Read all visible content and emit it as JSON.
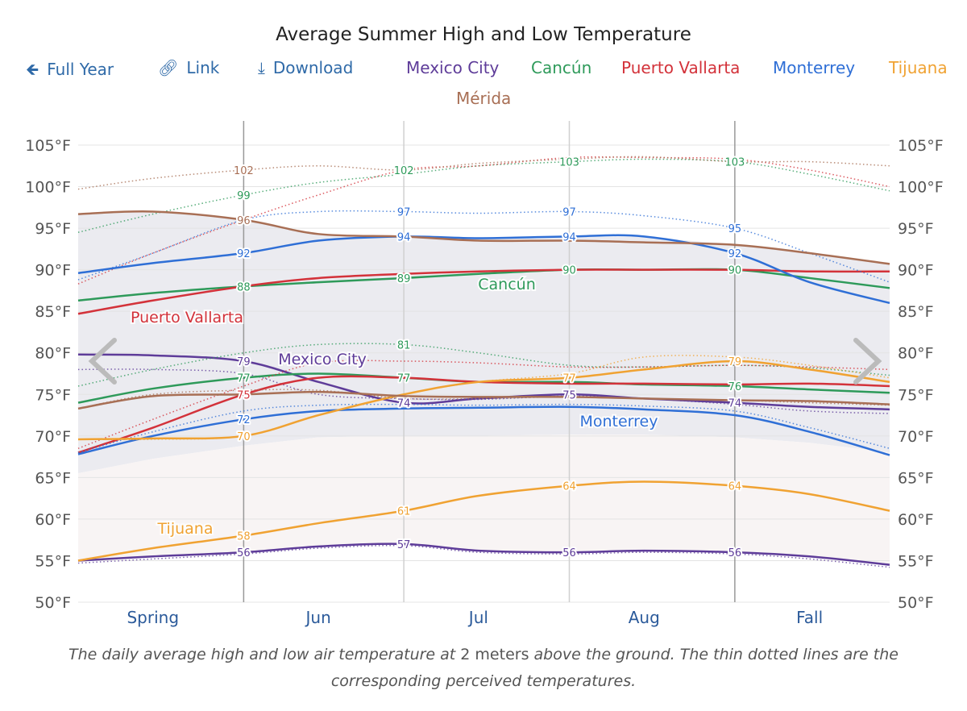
{
  "title": "Average Summer High and Low Temperature",
  "toolbar": {
    "full_year": {
      "label": "Full Year",
      "icon": "arrow-left-icon"
    },
    "link": {
      "label": "Link",
      "icon": "link-icon"
    },
    "download": {
      "label": "Download",
      "icon": "download-icon"
    },
    "color": "#2f6aa8"
  },
  "caption": {
    "part1": "The daily average high and low air temperature at ",
    "part2": "2 meters",
    "part3": " above the ground. The thin dotted lines are the corresponding perceived temperatures."
  },
  "nav": {
    "prev_icon": "chevron-left-icon",
    "next_icon": "chevron-right-icon"
  },
  "chart_data": {
    "type": "line",
    "title": "Average Summer High and Low Temperature",
    "x": [
      "May 1",
      "May 15",
      "Jun 1",
      "Jun 15",
      "Jul 1",
      "Jul 15",
      "Aug 1",
      "Aug 15",
      "Sep 1",
      "Sep 15",
      "Sep 30"
    ],
    "x_tick_labels": [
      "Spring",
      "Jun",
      "Jul",
      "Aug",
      "Fall"
    ],
    "y_unit": "°F",
    "ylim": [
      50,
      105
    ],
    "y_ticks": [
      50,
      55,
      60,
      65,
      70,
      75,
      80,
      85,
      90,
      95,
      100,
      105
    ],
    "grid": true,
    "legend_placement": "top",
    "series": [
      {
        "name": "Mexico City",
        "color": "#5e3c99",
        "high": [
          79.8,
          79.7,
          79,
          76.5,
          74,
          74.5,
          75,
          74.5,
          74,
          73.5,
          73.2
        ],
        "low": [
          55,
          55.5,
          56,
          56.7,
          57,
          56.2,
          56,
          56.2,
          56,
          55.5,
          54.5
        ],
        "high_perceived": [
          78,
          78,
          77.5,
          75,
          74.5,
          74.4,
          74.8,
          74.5,
          73.8,
          73,
          72.7
        ],
        "low_perceived": [
          54.7,
          55.2,
          55.8,
          56.5,
          56.8,
          56,
          55.8,
          56,
          55.8,
          55.2,
          54.2
        ]
      },
      {
        "name": "Cancún",
        "color": "#2e9a5a",
        "high": [
          86.3,
          87.2,
          88,
          88.5,
          89,
          89.5,
          90,
          90,
          90,
          89,
          87.8
        ],
        "low": [
          74,
          75.7,
          77,
          77.5,
          77,
          76.5,
          76.5,
          76.2,
          76,
          75.6,
          75.2
        ],
        "high_perceived": [
          94.5,
          96.7,
          99,
          100.5,
          101.5,
          102.5,
          103,
          103.3,
          103,
          101.5,
          99.5
        ],
        "low_perceived": [
          76,
          78,
          80,
          81,
          81,
          80,
          78.5,
          78.3,
          78.5,
          78.2,
          77.3
        ]
      },
      {
        "name": "Puerto Vallarta",
        "color": "#d3323a",
        "high": [
          84.7,
          86.3,
          88,
          89,
          89.5,
          89.8,
          90,
          90,
          90,
          89.8,
          89.8
        ],
        "low": [
          68,
          71,
          75,
          77,
          77,
          76.5,
          76.3,
          76.3,
          76.2,
          76.3,
          76
        ],
        "high_perceived": [
          88.3,
          92,
          96,
          99,
          102,
          102.5,
          103.5,
          103.5,
          103.3,
          102,
          100
        ],
        "low_perceived": [
          68.5,
          72,
          76,
          78.8,
          79,
          78.8,
          78.3,
          78.3,
          78.5,
          78.3,
          78
        ]
      },
      {
        "name": "Monterrey",
        "color": "#2f6fd6",
        "high": [
          89.6,
          90.8,
          92,
          93.5,
          94,
          93.8,
          94,
          94,
          92,
          88.5,
          86
        ],
        "low": [
          67.8,
          70,
          72,
          73,
          73.3,
          73.4,
          73.5,
          73.2,
          72.5,
          70.5,
          67.7
        ],
        "high_perceived": [
          88.8,
          92,
          96,
          97,
          97,
          96.8,
          97,
          96.5,
          95,
          92,
          88.5
        ],
        "low_perceived": [
          68,
          70.5,
          73,
          73.7,
          73.8,
          73.7,
          73.8,
          73.6,
          73,
          71,
          68.5
        ]
      },
      {
        "name": "Tijuana",
        "color": "#f0a232",
        "high": [
          69.6,
          69.7,
          70,
          72.5,
          75,
          76.5,
          77,
          78,
          79,
          78,
          76.5
        ],
        "low": [
          55,
          56.5,
          58,
          59.5,
          61,
          62.8,
          64,
          64.5,
          64,
          63,
          61
        ],
        "high_perceived": [
          69.6,
          69.6,
          70,
          72.5,
          75,
          76.5,
          77.5,
          79.5,
          79.5,
          78.5,
          77
        ],
        "low_perceived": [
          55,
          56.5,
          58,
          59.5,
          61,
          62.8,
          64,
          64.5,
          64,
          63,
          61
        ]
      },
      {
        "name": "Mérida",
        "color": "#a86f55",
        "high": [
          96.7,
          97,
          96,
          94.3,
          94,
          93.5,
          93.5,
          93.3,
          93,
          92,
          90.7
        ],
        "low": [
          73.3,
          74.8,
          75,
          75.3,
          74.8,
          74.7,
          74.7,
          74.5,
          74.3,
          74.2,
          73.8
        ],
        "high_perceived": [
          99.7,
          101,
          102,
          102.5,
          102,
          102.8,
          103.3,
          103.6,
          103,
          103,
          102.5
        ],
        "low_perceived": [
          73.3,
          75,
          75.5,
          75.5,
          74.5,
          74.5,
          74.7,
          74.5,
          74.3,
          74,
          73.7
        ]
      }
    ],
    "data_labels": [
      {
        "x": "Jun 1",
        "value": "102",
        "series": "Mérida"
      },
      {
        "x": "Jun 1",
        "value": "99",
        "series": "Cancún"
      },
      {
        "x": "Jun 1",
        "value": "96",
        "series": "Mérida"
      },
      {
        "x": "Jun 1",
        "value": "92",
        "series": "Monterrey"
      },
      {
        "x": "Jun 1",
        "value": "88",
        "series": "Cancún"
      },
      {
        "x": "Jun 1",
        "value": "79",
        "series": "Mexico City"
      },
      {
        "x": "Jun 1",
        "value": "77",
        "series": "Cancún"
      },
      {
        "x": "Jun 1",
        "value": "75",
        "series": "Puerto Vallarta"
      },
      {
        "x": "Jun 1",
        "value": "72",
        "series": "Monterrey"
      },
      {
        "x": "Jun 1",
        "value": "70",
        "series": "Tijuana"
      },
      {
        "x": "Jun 1",
        "value": "58",
        "series": "Tijuana"
      },
      {
        "x": "Jun 1",
        "value": "56",
        "series": "Mexico City"
      },
      {
        "x": "Jul 1",
        "value": "102",
        "series": "Cancún"
      },
      {
        "x": "Jul 1",
        "value": "97",
        "series": "Monterrey"
      },
      {
        "x": "Jul 1",
        "value": "94",
        "series": "Monterrey"
      },
      {
        "x": "Jul 1",
        "value": "89",
        "series": "Cancún"
      },
      {
        "x": "Jul 1",
        "value": "81",
        "series": "Cancún"
      },
      {
        "x": "Jul 1",
        "value": "77",
        "series": "Cancún"
      },
      {
        "x": "Jul 1",
        "value": "74",
        "series": "Mexico City"
      },
      {
        "x": "Jul 1",
        "value": "61",
        "series": "Tijuana"
      },
      {
        "x": "Jul 1",
        "value": "57",
        "series": "Mexico City"
      },
      {
        "x": "Aug 1",
        "value": "103",
        "series": "Cancún"
      },
      {
        "x": "Aug 1",
        "value": "97",
        "series": "Monterrey"
      },
      {
        "x": "Aug 1",
        "value": "94",
        "series": "Monterrey"
      },
      {
        "x": "Aug 1",
        "value": "90",
        "series": "Cancún"
      },
      {
        "x": "Aug 1",
        "value": "77",
        "series": "Tijuana"
      },
      {
        "x": "Aug 1",
        "value": "75",
        "series": "Mexico City"
      },
      {
        "x": "Aug 1",
        "value": "64",
        "series": "Tijuana"
      },
      {
        "x": "Aug 1",
        "value": "56",
        "series": "Mexico City"
      },
      {
        "x": "Sep 1",
        "value": "103",
        "series": "Cancún"
      },
      {
        "x": "Sep 1",
        "value": "95",
        "series": "Monterrey"
      },
      {
        "x": "Sep 1",
        "value": "92",
        "series": "Monterrey"
      },
      {
        "x": "Sep 1",
        "value": "90",
        "series": "Cancún"
      },
      {
        "x": "Sep 1",
        "value": "79",
        "series": "Tijuana"
      },
      {
        "x": "Sep 1",
        "value": "76",
        "series": "Cancún"
      },
      {
        "x": "Sep 1",
        "value": "74",
        "series": "Mexico City"
      },
      {
        "x": "Sep 1",
        "value": "64",
        "series": "Tijuana"
      },
      {
        "x": "Sep 1",
        "value": "56",
        "series": "Mexico City"
      }
    ]
  }
}
